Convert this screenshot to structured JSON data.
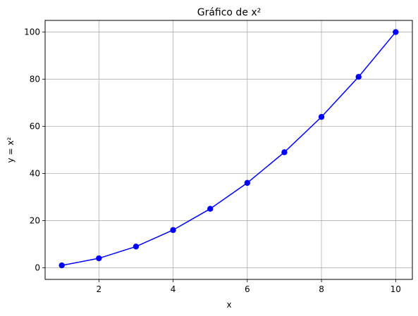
{
  "chart_data": {
    "type": "line",
    "title": "Gráfico de x²",
    "xlabel": "x",
    "ylabel": "y = x²",
    "x": [
      1,
      2,
      3,
      4,
      5,
      6,
      7,
      8,
      9,
      10
    ],
    "series": [
      {
        "values": [
          1,
          4,
          9,
          16,
          25,
          36,
          49,
          64,
          81,
          100
        ],
        "color": "#0000ff",
        "marker": "circle"
      }
    ],
    "xlim": [
      0.55,
      10.45
    ],
    "ylim": [
      -4.95,
      104.95
    ],
    "xticks": [
      2,
      4,
      6,
      8,
      10
    ],
    "yticks": [
      0,
      20,
      40,
      60,
      80,
      100
    ],
    "grid": true
  }
}
